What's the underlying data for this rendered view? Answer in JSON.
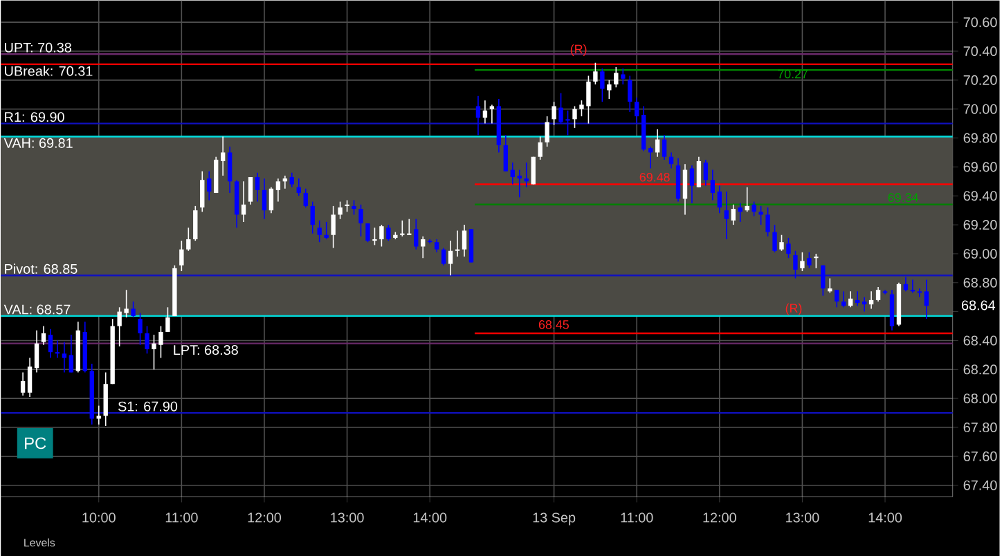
{
  "chart_data": {
    "type": "candlestick",
    "categories": [
      null,
      null,
      null,
      null,
      null,
      null,
      null,
      null,
      null,
      null,
      null,
      "10:00",
      null,
      null,
      null,
      null,
      null,
      null,
      null,
      null,
      null,
      null,
      null,
      "11:00",
      null,
      null,
      null,
      null,
      null,
      null,
      null,
      null,
      null,
      null,
      null,
      "12:00",
      null,
      null,
      null,
      null,
      null,
      null,
      null,
      null,
      null,
      null,
      null,
      "13:00",
      null,
      null,
      null,
      null,
      null,
      null,
      null,
      null,
      null,
      null,
      null,
      "14:00",
      null,
      null,
      null,
      null,
      null,
      null,
      null,
      null,
      null,
      null,
      null,
      null,
      null,
      null,
      null,
      null,
      null,
      "13 Sep",
      null,
      null,
      null,
      null,
      null,
      null,
      null,
      null,
      null,
      null,
      null,
      "11:00",
      null,
      null,
      null,
      null,
      null,
      null,
      null,
      null,
      null,
      null,
      null,
      "12:00",
      null,
      null,
      null,
      null,
      null,
      null,
      null,
      null,
      null,
      null,
      null,
      "13:00",
      null,
      null,
      null,
      null,
      null,
      null,
      null,
      null,
      null,
      null,
      null,
      "14:00",
      null,
      null,
      null,
      null,
      null,
      null
    ],
    "ohlc": [
      [
        68.04,
        68.18,
        68.02,
        68.12
      ],
      [
        68.04,
        68.28,
        68.01,
        68.22
      ],
      [
        68.21,
        68.47,
        68.18,
        68.38
      ],
      [
        68.39,
        68.5,
        68.37,
        68.45
      ],
      [
        68.44,
        68.48,
        68.28,
        68.32
      ],
      [
        68.32,
        68.4,
        68.28,
        68.31
      ],
      [
        68.31,
        68.39,
        68.18,
        68.28
      ],
      [
        68.3,
        68.44,
        68.18,
        68.18
      ],
      [
        68.19,
        68.53,
        68.18,
        68.47
      ],
      [
        68.46,
        68.53,
        68.18,
        68.19
      ],
      [
        68.19,
        68.24,
        67.82,
        67.86
      ],
      [
        67.86,
        67.95,
        67.82,
        67.88
      ],
      [
        67.88,
        68.18,
        67.81,
        68.1
      ],
      [
        68.1,
        68.55,
        68.1,
        68.5
      ],
      [
        68.5,
        68.63,
        68.36,
        68.6
      ],
      [
        68.59,
        68.75,
        68.56,
        68.62
      ],
      [
        68.62,
        68.67,
        68.56,
        68.57
      ],
      [
        68.55,
        68.59,
        68.37,
        68.45
      ],
      [
        68.45,
        68.5,
        68.31,
        68.34
      ],
      [
        68.34,
        68.44,
        68.2,
        68.38
      ],
      [
        68.37,
        68.5,
        68.28,
        68.46
      ],
      [
        68.46,
        68.63,
        68.46,
        68.56
      ],
      [
        68.57,
        68.92,
        68.57,
        68.9
      ],
      [
        68.92,
        69.09,
        68.88,
        69.03
      ],
      [
        69.03,
        69.18,
        69.02,
        69.1
      ],
      [
        69.1,
        69.33,
        69.09,
        69.3
      ],
      [
        69.32,
        69.57,
        69.29,
        69.51
      ],
      [
        69.52,
        69.57,
        69.37,
        69.43
      ],
      [
        69.42,
        69.67,
        69.42,
        69.65
      ],
      [
        69.64,
        69.81,
        69.54,
        69.7
      ],
      [
        69.7,
        69.74,
        69.42,
        69.5
      ],
      [
        69.5,
        69.51,
        69.18,
        69.27
      ],
      [
        69.27,
        69.5,
        69.22,
        69.34
      ],
      [
        69.36,
        69.53,
        69.34,
        69.53
      ],
      [
        69.53,
        69.56,
        69.36,
        69.44
      ],
      [
        69.44,
        69.52,
        69.24,
        69.3
      ],
      [
        69.3,
        69.46,
        69.28,
        69.45
      ],
      [
        69.44,
        69.52,
        69.36,
        69.5
      ],
      [
        69.5,
        69.54,
        69.45,
        69.52
      ],
      [
        69.53,
        69.56,
        69.46,
        69.48
      ],
      [
        69.46,
        69.52,
        69.4,
        69.42
      ],
      [
        69.42,
        69.45,
        69.32,
        69.33
      ],
      [
        69.33,
        69.36,
        69.14,
        69.2
      ],
      [
        69.18,
        69.23,
        69.08,
        69.13
      ],
      [
        69.13,
        69.22,
        69.1,
        69.11
      ],
      [
        69.13,
        69.33,
        69.04,
        69.27
      ],
      [
        69.27,
        69.36,
        69.24,
        69.32
      ],
      [
        69.33,
        69.37,
        69.29,
        69.34
      ],
      [
        69.33,
        69.37,
        69.27,
        69.31
      ],
      [
        69.31,
        69.34,
        69.12,
        69.21
      ],
      [
        69.21,
        69.21,
        69.08,
        69.09
      ],
      [
        69.09,
        69.18,
        69.06,
        69.1
      ],
      [
        69.1,
        69.2,
        69.05,
        69.19
      ],
      [
        69.18,
        69.2,
        69.09,
        69.1
      ],
      [
        69.11,
        69.15,
        69.1,
        69.13
      ],
      [
        69.13,
        69.23,
        69.12,
        69.14
      ],
      [
        69.13,
        69.24,
        69.13,
        69.14
      ],
      [
        69.17,
        69.24,
        69.03,
        69.05
      ],
      [
        69.05,
        69.12,
        68.97,
        69.1
      ],
      [
        69.09,
        69.1,
        69.07,
        69.08
      ],
      [
        69.08,
        69.1,
        69.01,
        69.03
      ],
      [
        69.03,
        69.04,
        68.92,
        68.93
      ],
      [
        68.93,
        69.09,
        68.85,
        69.02
      ],
      [
        69.02,
        69.16,
        68.98,
        69.03
      ],
      [
        69.03,
        69.2,
        68.98,
        69.16
      ],
      [
        69.17,
        69.17,
        68.94,
        68.94
      ],
      [
        70.02,
        70.09,
        69.82,
        69.94
      ],
      [
        69.94,
        70.06,
        69.9,
        69.99
      ],
      [
        70.0,
        70.03,
        69.9,
        70.02
      ],
      [
        70.02,
        70.07,
        69.7,
        69.75
      ],
      [
        69.75,
        69.82,
        69.57,
        69.57
      ],
      [
        69.58,
        69.63,
        69.48,
        69.53
      ],
      [
        69.54,
        69.58,
        69.39,
        69.52
      ],
      [
        69.52,
        69.63,
        69.46,
        69.5
      ],
      [
        69.48,
        69.67,
        69.48,
        69.67
      ],
      [
        69.67,
        69.81,
        69.65,
        69.77
      ],
      [
        69.77,
        69.95,
        69.74,
        69.91
      ],
      [
        69.93,
        70.05,
        69.89,
        70.02
      ],
      [
        70.01,
        70.11,
        69.9,
        69.91
      ],
      [
        69.93,
        69.99,
        69.82,
        69.92
      ],
      [
        69.93,
        70.02,
        69.87,
        70.0
      ],
      [
        70.0,
        70.06,
        69.95,
        70.03
      ],
      [
        70.02,
        70.23,
        69.9,
        70.19
      ],
      [
        70.19,
        70.32,
        70.17,
        70.26
      ],
      [
        70.26,
        70.28,
        70.05,
        70.14
      ],
      [
        70.13,
        70.2,
        70.07,
        70.17
      ],
      [
        70.17,
        70.29,
        70.15,
        70.25
      ],
      [
        70.24,
        70.28,
        70.17,
        70.21
      ],
      [
        70.2,
        70.23,
        69.98,
        70.05
      ],
      [
        70.05,
        70.08,
        69.9,
        69.95
      ],
      [
        69.96,
        70.02,
        69.71,
        69.72
      ],
      [
        69.73,
        69.74,
        69.59,
        69.7
      ],
      [
        69.7,
        69.86,
        69.67,
        69.79
      ],
      [
        69.79,
        69.82,
        69.65,
        69.67
      ],
      [
        69.67,
        69.7,
        69.59,
        69.62
      ],
      [
        69.61,
        69.66,
        69.36,
        69.38
      ],
      [
        69.38,
        69.62,
        69.27,
        69.58
      ],
      [
        69.59,
        69.61,
        69.35,
        69.47
      ],
      [
        69.46,
        69.67,
        69.46,
        69.64
      ],
      [
        69.63,
        69.65,
        69.47,
        69.51
      ],
      [
        69.51,
        69.58,
        69.37,
        69.42
      ],
      [
        69.43,
        69.47,
        69.28,
        69.32
      ],
      [
        69.3,
        69.43,
        69.1,
        69.24
      ],
      [
        69.23,
        69.34,
        69.2,
        69.31
      ],
      [
        69.32,
        69.35,
        69.22,
        69.29
      ],
      [
        69.3,
        69.46,
        69.29,
        69.33
      ],
      [
        69.34,
        69.36,
        69.26,
        69.29
      ],
      [
        69.29,
        69.33,
        69.2,
        69.27
      ],
      [
        69.27,
        69.32,
        69.12,
        69.15
      ],
      [
        69.15,
        69.2,
        69.01,
        69.02
      ],
      [
        69.03,
        69.13,
        69.02,
        69.08
      ],
      [
        69.07,
        69.11,
        68.97,
        69.0
      ],
      [
        68.99,
        69.02,
        68.83,
        68.89
      ],
      [
        68.9,
        69.01,
        68.88,
        68.95
      ],
      [
        68.97,
        69.01,
        68.9,
        68.92
      ],
      [
        68.97,
        69.0,
        68.9,
        68.98
      ],
      [
        68.92,
        68.92,
        68.71,
        68.76
      ],
      [
        68.74,
        68.83,
        68.73,
        68.76
      ],
      [
        68.75,
        68.75,
        68.63,
        68.67
      ],
      [
        68.67,
        68.74,
        68.63,
        68.64
      ],
      [
        68.64,
        68.74,
        68.63,
        68.69
      ],
      [
        68.68,
        68.74,
        68.64,
        68.66
      ],
      [
        68.67,
        68.7,
        68.6,
        68.65
      ],
      [
        68.65,
        68.74,
        68.62,
        68.68
      ],
      [
        68.68,
        68.77,
        68.67,
        68.75
      ],
      [
        68.74,
        68.75,
        68.72,
        68.73
      ],
      [
        68.72,
        68.75,
        68.47,
        68.5
      ],
      [
        68.51,
        68.8,
        68.5,
        68.79
      ],
      [
        68.79,
        68.84,
        68.74,
        68.75
      ],
      [
        68.75,
        68.82,
        68.73,
        68.74
      ],
      [
        68.74,
        68.76,
        68.7,
        68.73
      ],
      [
        68.74,
        68.82,
        68.55,
        68.64
      ]
    ],
    "colors": [
      "#ffffff",
      "#ffffff",
      "#ffffff",
      "#ffffff",
      "#0000ff",
      "#0000ff",
      "#0000ff",
      "#0000ff",
      "#ffffff",
      "#0000ff",
      "#0000ff",
      "#ffffff",
      "#ffffff",
      "#ffffff",
      "#ffffff",
      "#ffffff",
      "#0000ff",
      "#0000ff",
      "#0000ff",
      "#ffffff",
      "#ffffff",
      "#ffffff",
      "#ffffff",
      "#ffffff",
      "#ffffff",
      "#ffffff",
      "#ffffff",
      "#0000ff",
      "#ffffff",
      "#ffffff",
      "#0000ff",
      "#0000ff",
      "#ffffff",
      "#ffffff",
      "#0000ff",
      "#0000ff",
      "#ffffff",
      "#ffffff",
      "#ffffff",
      "#0000ff",
      "#0000ff",
      "#0000ff",
      "#0000ff",
      "#0000ff",
      "#0000ff",
      "#ffffff",
      "#ffffff",
      "#ffffff",
      "#0000ff",
      "#0000ff",
      "#0000ff",
      "#ffffff",
      "#ffffff",
      "#0000ff",
      "#ffffff",
      "#ffffff",
      "#ffffff",
      "#0000ff",
      "#ffffff",
      "#0000ff",
      "#0000ff",
      "#0000ff",
      "#ffffff",
      "#ffffff",
      "#ffffff",
      "#0000ff",
      "#0000ff",
      "#ffffff",
      "#ffffff",
      "#0000ff",
      "#0000ff",
      "#0000ff",
      "#0000ff",
      "#0000ff",
      "#ffffff",
      "#ffffff",
      "#ffffff",
      "#ffffff",
      "#0000ff",
      "#0000ff",
      "#ffffff",
      "#ffffff",
      "#ffffff",
      "#ffffff",
      "#0000ff",
      "#ffffff",
      "#ffffff",
      "#0000ff",
      "#0000ff",
      "#0000ff",
      "#0000ff",
      "#0000ff",
      "#ffffff",
      "#0000ff",
      "#0000ff",
      "#0000ff",
      "#ffffff",
      "#0000ff",
      "#ffffff",
      "#0000ff",
      "#0000ff",
      "#0000ff",
      "#0000ff",
      "#ffffff",
      "#0000ff",
      "#ffffff",
      "#0000ff",
      "#0000ff",
      "#0000ff",
      "#0000ff",
      "#ffffff",
      "#0000ff",
      "#0000ff",
      "#ffffff",
      "#0000ff",
      "#ffffff",
      "#0000ff",
      "#ffffff",
      "#0000ff",
      "#0000ff",
      "#ffffff",
      "#0000ff",
      "#0000ff",
      "#ffffff",
      "#ffffff",
      "#0000ff",
      "#0000ff",
      "#ffffff",
      "#0000ff",
      "#0000ff",
      "#0000ff",
      "#0000ff"
    ],
    "ylim": [
      67.32,
      70.75
    ],
    "yticks": [
      {
        "value": 67.4,
        "label": "67.40"
      },
      {
        "value": 67.6,
        "label": "67.60"
      },
      {
        "value": 67.8,
        "label": "67.80"
      },
      {
        "value": 68.0,
        "label": "68.00"
      },
      {
        "value": 68.2,
        "label": "68.20"
      },
      {
        "value": 68.4,
        "label": "68.40"
      },
      {
        "value": 68.6,
        "label": null
      },
      {
        "value": 68.8,
        "label": "68.80"
      },
      {
        "value": 69.0,
        "label": "69.00"
      },
      {
        "value": 69.2,
        "label": "69.20"
      },
      {
        "value": 69.4,
        "label": "69.40"
      },
      {
        "value": 69.6,
        "label": "69.60"
      },
      {
        "value": 69.8,
        "label": "69.80"
      },
      {
        "value": 70.0,
        "label": "70.00"
      },
      {
        "value": 70.2,
        "label": "70.20"
      },
      {
        "value": 70.4,
        "label": "70.40"
      },
      {
        "value": 70.6,
        "label": "70.60"
      }
    ],
    "grid": true,
    "bands": [
      {
        "axis": "y",
        "from": 68.57,
        "to": 69.81,
        "color": "#4b4a44"
      }
    ],
    "ref_lines": [
      {
        "axis": "y",
        "value": 70.38,
        "label": "UPT: 70.38",
        "color": "#6a2a6a"
      },
      {
        "axis": "y",
        "value": 70.31,
        "label": "UBreak: 70.31",
        "color": "#ff0000"
      },
      {
        "axis": "y",
        "value": 69.9,
        "label": "R1: 69.90",
        "color": "#1010c0"
      },
      {
        "axis": "y",
        "value": 69.81,
        "label": "VAH: 69.81",
        "color": "#00e0e0"
      },
      {
        "axis": "y",
        "value": 68.85,
        "label": "Pivot: 68.85",
        "color": "#1010c0"
      },
      {
        "axis": "y",
        "value": 68.57,
        "label": "VAL: 68.57",
        "color": "#00e0e0"
      },
      {
        "axis": "y",
        "value": 68.38,
        "label": "LPT: 68.38",
        "color": "#6a2a6a"
      },
      {
        "axis": "y",
        "value": 67.9,
        "label": "S1: 67.90",
        "color": "#1010c0"
      },
      {
        "axis": "y",
        "value": 70.27,
        "color": "#008000"
      },
      {
        "axis": "y",
        "value": 69.34,
        "color": "#008000"
      },
      {
        "axis": "y",
        "value": 69.48,
        "color": "#ff0000"
      },
      {
        "axis": "y",
        "value": 68.45,
        "color": "#ff0000"
      }
    ],
    "annotations": [
      "(R)",
      "70.27",
      "69.34",
      "69.48",
      "68.45",
      "(R)",
      "PC",
      "Levels",
      "68.64"
    ]
  }
}
